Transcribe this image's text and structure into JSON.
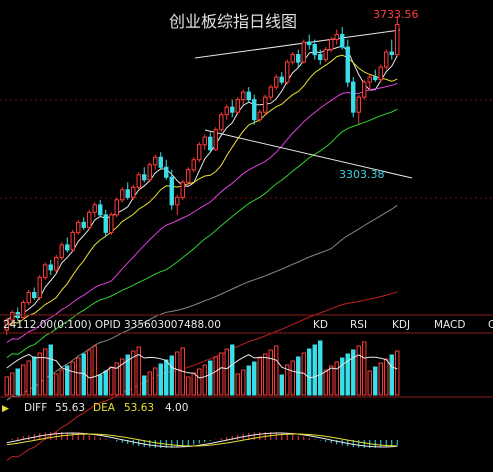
{
  "chart_data": {
    "type": "candlestick",
    "title": "创业板综指日线图",
    "annotations": {
      "high_label": "3733.56",
      "low_label": "3303.38"
    },
    "indicator_bar": {
      "left_text": "24112.00(0:100)  OPID 335603007488.00",
      "tabs": [
        "KD",
        "RSI",
        "KDJ",
        "MACD",
        "C"
      ],
      "active_tab": "KDJ"
    },
    "macd_label": {
      "diff_label": "DIFF",
      "diff_value": "55.63",
      "dea_label": "DEA",
      "dea_value": "53.63",
      "macd_value": "4.00"
    },
    "colors": {
      "up": "#ff3a3a",
      "down": "#3adfe8",
      "ma_white": "#e8e8e8",
      "ma_yellow": "#e8e030",
      "ma_magenta": "#e040e0",
      "ma_green": "#30d030",
      "ma_gray": "#888888",
      "ma_red": "#c02020",
      "title": "#e0e0e0",
      "high": "#ff4040",
      "low": "#40d0e0"
    },
    "ohlc": [
      [
        2480,
        2530,
        2460,
        2520
      ],
      [
        2520,
        2560,
        2500,
        2550
      ],
      [
        2550,
        2570,
        2520,
        2530
      ],
      [
        2530,
        2600,
        2520,
        2590
      ],
      [
        2590,
        2640,
        2580,
        2630
      ],
      [
        2630,
        2650,
        2600,
        2610
      ],
      [
        2610,
        2700,
        2600,
        2690
      ],
      [
        2690,
        2750,
        2680,
        2740
      ],
      [
        2740,
        2760,
        2700,
        2720
      ],
      [
        2720,
        2780,
        2710,
        2770
      ],
      [
        2770,
        2830,
        2760,
        2820
      ],
      [
        2820,
        2850,
        2790,
        2800
      ],
      [
        2800,
        2880,
        2795,
        2870
      ],
      [
        2870,
        2920,
        2860,
        2910
      ],
      [
        2910,
        2930,
        2880,
        2890
      ],
      [
        2890,
        2960,
        2880,
        2950
      ],
      [
        2950,
        2990,
        2930,
        2980
      ],
      [
        2980,
        3000,
        2930,
        2940
      ],
      [
        2940,
        2960,
        2850,
        2870
      ],
      [
        2870,
        2950,
        2860,
        2940
      ],
      [
        2940,
        3010,
        2930,
        3000
      ],
      [
        3000,
        3050,
        2990,
        3040
      ],
      [
        3040,
        3070,
        3000,
        3010
      ],
      [
        3010,
        3060,
        3000,
        3050
      ],
      [
        3050,
        3110,
        3040,
        3100
      ],
      [
        3100,
        3130,
        3070,
        3080
      ],
      [
        3080,
        3150,
        3075,
        3140
      ],
      [
        3140,
        3180,
        3120,
        3170
      ],
      [
        3170,
        3190,
        3120,
        3130
      ],
      [
        3130,
        3160,
        3080,
        3090
      ],
      [
        3090,
        3120,
        2960,
        2980
      ],
      [
        2980,
        3020,
        2940,
        3010
      ],
      [
        3010,
        3080,
        3000,
        3070
      ],
      [
        3070,
        3130,
        3060,
        3120
      ],
      [
        3120,
        3170,
        3110,
        3160
      ],
      [
        3160,
        3230,
        3150,
        3220
      ],
      [
        3220,
        3260,
        3200,
        3250
      ],
      [
        3250,
        3270,
        3190,
        3200
      ],
      [
        3200,
        3290,
        3195,
        3280
      ],
      [
        3280,
        3350,
        3270,
        3340
      ],
      [
        3340,
        3380,
        3320,
        3370
      ],
      [
        3370,
        3400,
        3330,
        3350
      ],
      [
        3350,
        3410,
        3340,
        3400
      ],
      [
        3400,
        3440,
        3380,
        3430
      ],
      [
        3430,
        3450,
        3390,
        3400
      ],
      [
        3400,
        3420,
        3300,
        3320
      ],
      [
        3320,
        3360,
        3310,
        3350
      ],
      [
        3350,
        3420,
        3340,
        3410
      ],
      [
        3410,
        3460,
        3400,
        3450
      ],
      [
        3450,
        3500,
        3440,
        3490
      ],
      [
        3490,
        3510,
        3460,
        3470
      ],
      [
        3470,
        3560,
        3460,
        3550
      ],
      [
        3550,
        3590,
        3540,
        3580
      ],
      [
        3580,
        3600,
        3530,
        3550
      ],
      [
        3550,
        3640,
        3545,
        3630
      ],
      [
        3630,
        3660,
        3600,
        3620
      ],
      [
        3620,
        3640,
        3560,
        3580
      ],
      [
        3580,
        3600,
        3540,
        3560
      ],
      [
        3560,
        3610,
        3550,
        3600
      ],
      [
        3600,
        3650,
        3590,
        3640
      ],
      [
        3640,
        3680,
        3620,
        3660
      ],
      [
        3660,
        3690,
        3600,
        3610
      ],
      [
        3610,
        3640,
        3450,
        3470
      ],
      [
        3470,
        3490,
        3330,
        3350
      ],
      [
        3350,
        3420,
        3303.38,
        3410
      ],
      [
        3410,
        3480,
        3400,
        3470
      ],
      [
        3470,
        3500,
        3440,
        3490
      ],
      [
        3490,
        3520,
        3470,
        3480
      ],
      [
        3480,
        3540,
        3470,
        3530
      ],
      [
        3530,
        3600,
        3520,
        3590
      ],
      [
        3590,
        3640,
        3560,
        3580
      ],
      [
        3580,
        3733.56,
        3575,
        3700
      ]
    ],
    "ma_params": [
      5,
      10,
      20,
      30,
      60,
      120
    ],
    "trendlines": [
      {
        "from": [
          32,
          3580
        ],
        "to": [
          71,
          3640
        ]
      },
      {
        "from": [
          24,
          3120
        ],
        "to": [
          73,
          3280
        ]
      }
    ],
    "price_range": [
      2600,
      3750
    ],
    "volume_scale": [
      0,
      100
    ]
  }
}
